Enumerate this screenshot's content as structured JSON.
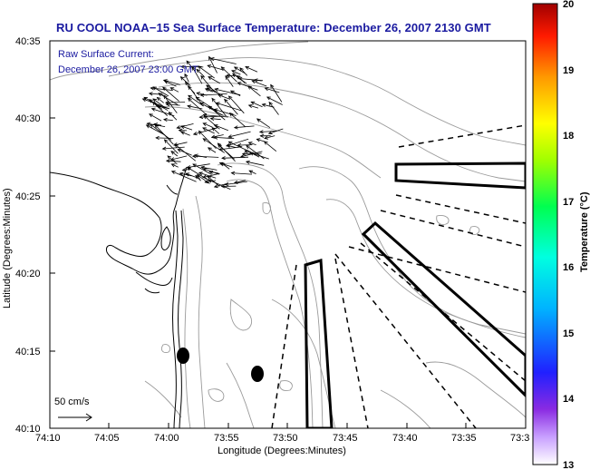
{
  "title": "RU COOL  NOAA−15  Sea Surface Temperature:  December 26, 2007 2130 GMT",
  "current_label_line1": "Raw Surface Current:",
  "current_label_line2": "December 26, 2007 23:00 GMT",
  "scale_label": "50 cm/s",
  "xlabel": "Longitude (Degrees:Minutes)",
  "ylabel": "Latitude (Degrees:Minutes)",
  "xticks": [
    "74:10",
    "74:05",
    "74:00",
    "73:55",
    "73:50",
    "73:45",
    "73:40",
    "73:35",
    "73:3"
  ],
  "yticks": [
    "40:35",
    "40:30",
    "40:25",
    "40:20",
    "40:15",
    "40:10"
  ],
  "colorbar": {
    "label": "Temperature (°C)",
    "min": 13,
    "max": 20,
    "ticks": [
      "20",
      "19",
      "18",
      "17",
      "16",
      "15",
      "14",
      "13"
    ]
  },
  "colors": {
    "title": "#1a1aa0",
    "land": "#ffffff",
    "coast": "#000000",
    "bathymetry": "#999999"
  }
}
